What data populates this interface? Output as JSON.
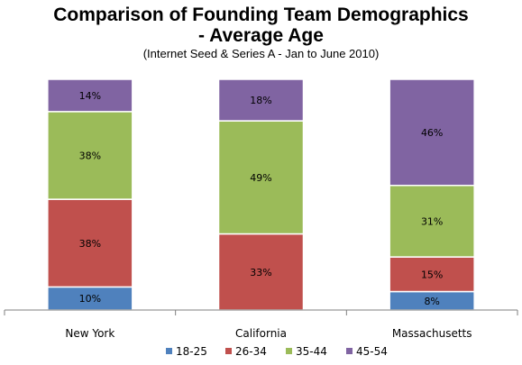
{
  "chart_data": {
    "type": "bar",
    "stacked": true,
    "title_line1": "Comparison of Founding Team Demographics",
    "title_line2": "- Average Age",
    "subtitle": "(Internet Seed & Series A - Jan to June 2010)",
    "categories": [
      "New York",
      "California",
      "Massachusetts"
    ],
    "ylim": [
      0,
      100
    ],
    "grid": false,
    "legend_position": "bottom",
    "series": [
      {
        "name": "18-25",
        "color": "#4f81bd",
        "values": [
          10,
          0,
          8
        ],
        "labels": [
          "10%",
          "",
          "8%"
        ]
      },
      {
        "name": "26-34",
        "color": "#c0504d",
        "values": [
          38,
          33,
          15
        ],
        "labels": [
          "38%",
          "33%",
          "15%"
        ]
      },
      {
        "name": "35-44",
        "color": "#9bbb59",
        "values": [
          38,
          49,
          31
        ],
        "labels": [
          "38%",
          "49%",
          "31%"
        ]
      },
      {
        "name": "45-54",
        "color": "#8064a2",
        "values": [
          14,
          18,
          46
        ],
        "labels": [
          "14%",
          "18%",
          "46%"
        ]
      }
    ]
  }
}
